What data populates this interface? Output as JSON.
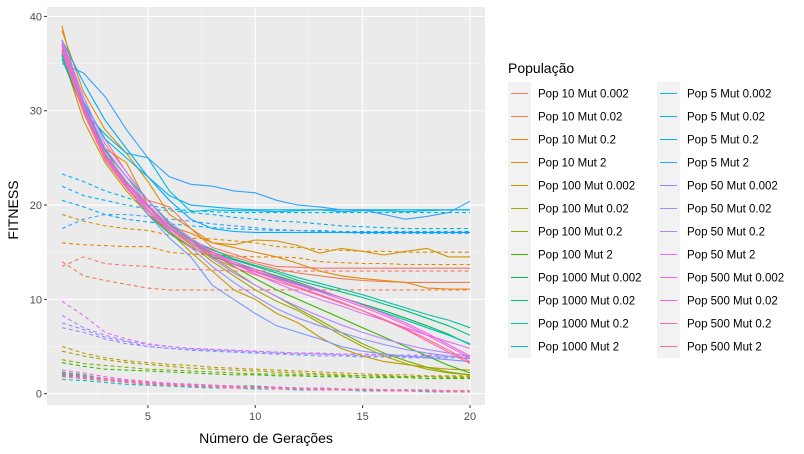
{
  "chart_data": {
    "type": "line",
    "xlabel": "Número de Gerações",
    "ylabel": "FITNESS",
    "xlim": [
      0.3,
      20.7
    ],
    "ylim": [
      -1.2,
      41
    ],
    "x_ticks": [
      5,
      10,
      15,
      20
    ],
    "y_ticks": [
      0,
      10,
      20,
      30,
      40
    ],
    "grid": true,
    "background": "#ebebeb",
    "legend": {
      "title": "População",
      "position": "right",
      "columns": 2
    },
    "x": [
      1,
      2,
      3,
      4,
      5,
      6,
      7,
      8,
      9,
      10,
      11,
      12,
      13,
      14,
      15,
      16,
      17,
      18,
      19,
      20
    ],
    "series": [
      {
        "name": "Pop 10 Mut 0.002",
        "color": "#F8766D",
        "best": [
          37.2,
          31.0,
          27.0,
          23.5,
          20.5,
          19.8,
          17.5,
          15.5,
          14.8,
          14.0,
          13.5,
          13.4,
          13.3,
          13.3,
          13.3,
          13.3,
          13.3,
          13.3,
          13.3,
          13.3
        ],
        "mean": [
          13.5,
          14.5,
          13.8,
          13.6,
          13.5,
          13.2,
          13.2,
          13.1,
          13.0,
          13.0,
          13.0,
          13.0,
          13.0,
          13.0,
          13.0,
          13.0,
          13.0,
          13.0,
          13.0,
          13.0
        ]
      },
      {
        "name": "Pop 10 Mut 0.02",
        "color": "#F17E4E",
        "best": [
          36.5,
          30.5,
          26.0,
          22.0,
          19.0,
          17.5,
          16.3,
          15.2,
          14.5,
          13.8,
          13.2,
          12.8,
          12.5,
          12.2,
          12.0,
          11.9,
          11.8,
          11.8,
          11.8,
          11.8
        ],
        "mean": [
          14.0,
          12.5,
          12.0,
          11.6,
          11.2,
          11.0,
          11.0,
          11.0,
          11.0,
          11.0,
          11.0,
          11.0,
          11.0,
          11.0,
          11.0,
          11.0,
          11.0,
          11.0,
          11.0,
          11.0
        ]
      },
      {
        "name": "Pop 10 Mut 0.2",
        "color": "#E58800",
        "best": [
          39.0,
          30.0,
          26.0,
          24.5,
          20.0,
          17.8,
          17.0,
          16.0,
          15.5,
          15.0,
          14.5,
          13.8,
          13.0,
          12.5,
          12.2,
          12.0,
          11.8,
          11.2,
          11.1,
          11.1
        ],
        "mean": [
          16.0,
          15.8,
          15.7,
          15.6,
          15.6,
          15.0,
          14.8,
          14.7,
          14.6,
          14.5,
          14.5,
          14.4,
          14.0,
          13.9,
          13.8,
          13.8,
          13.7,
          13.7,
          13.7,
          13.7
        ]
      },
      {
        "name": "Pop 10 Mut 2",
        "color": "#D89000",
        "best": [
          38.5,
          32.0,
          28.0,
          25.5,
          22.5,
          19.0,
          17.5,
          16.0,
          15.8,
          16.3,
          16.2,
          15.7,
          14.9,
          15.4,
          15.1,
          14.7,
          15.1,
          15.4,
          14.5,
          14.5
        ],
        "mean": [
          19.0,
          18.3,
          17.8,
          17.5,
          17.3,
          16.8,
          16.5,
          16.4,
          16.2,
          16.0,
          15.6,
          15.5,
          15.3,
          15.2,
          15.1,
          15.1,
          15.0,
          15.0,
          15.0,
          15.0
        ]
      },
      {
        "name": "Pop 100 Mut 0.002",
        "color": "#C09B00",
        "best": [
          36.0,
          29.0,
          24.5,
          21.5,
          19.0,
          17.2,
          15.0,
          13.0,
          11.0,
          10.0,
          8.5,
          7.5,
          6.0,
          4.8,
          4.0,
          3.4,
          3.1,
          2.8,
          2.6,
          2.5
        ],
        "mean": [
          5.0,
          4.3,
          3.8,
          3.5,
          3.3,
          3.1,
          3.0,
          2.8,
          2.7,
          2.6,
          2.5,
          2.4,
          2.3,
          2.2,
          2.1,
          2.0,
          2.0,
          1.9,
          1.9,
          1.9
        ]
      },
      {
        "name": "Pop 100 Mut 0.02",
        "color": "#A3A500",
        "best": [
          36.5,
          30.0,
          25.0,
          22.0,
          19.5,
          17.5,
          15.8,
          14.0,
          12.5,
          11.0,
          9.8,
          8.8,
          7.5,
          6.2,
          5.0,
          4.0,
          3.2,
          2.6,
          2.2,
          2.0
        ],
        "mean": [
          4.5,
          4.0,
          3.6,
          3.3,
          3.1,
          2.9,
          2.7,
          2.6,
          2.5,
          2.4,
          2.3,
          2.2,
          2.1,
          2.0,
          1.9,
          1.9,
          1.8,
          1.8,
          1.8,
          1.8
        ]
      },
      {
        "name": "Pop 100 Mut 0.2",
        "color": "#7CAE00",
        "best": [
          37.0,
          30.5,
          25.5,
          22.5,
          20.0,
          17.8,
          16.0,
          14.5,
          13.0,
          11.5,
          10.3,
          9.0,
          7.8,
          6.5,
          5.3,
          4.3,
          3.5,
          2.8,
          2.3,
          2.0
        ],
        "mean": [
          3.6,
          3.2,
          3.0,
          2.8,
          2.6,
          2.5,
          2.4,
          2.3,
          2.2,
          2.1,
          2.1,
          2.0,
          2.0,
          1.9,
          1.9,
          1.8,
          1.8,
          1.8,
          1.7,
          1.7
        ]
      },
      {
        "name": "Pop 100 Mut 2",
        "color": "#39B600",
        "best": [
          37.5,
          31.0,
          26.0,
          23.0,
          20.5,
          18.0,
          16.3,
          14.8,
          13.5,
          12.2,
          11.0,
          10.0,
          9.0,
          8.0,
          7.0,
          6.0,
          5.0,
          4.0,
          3.0,
          2.2
        ],
        "mean": [
          3.3,
          2.9,
          2.6,
          2.5,
          2.4,
          2.3,
          2.2,
          2.1,
          2.0,
          2.0,
          1.9,
          1.9,
          1.8,
          1.8,
          1.7,
          1.7,
          1.7,
          1.6,
          1.6,
          1.6
        ]
      },
      {
        "name": "Pop 1000 Mut 0.002",
        "color": "#00BB4E",
        "best": [
          35.5,
          30.0,
          25.0,
          22.0,
          19.0,
          17.0,
          15.5,
          14.5,
          13.8,
          13.2,
          12.5,
          11.8,
          11.0,
          10.2,
          9.5,
          8.8,
          8.0,
          7.2,
          6.3,
          5.2
        ],
        "mean": [
          2.3,
          2.0,
          1.6,
          1.4,
          1.2,
          1.1,
          1.0,
          0.9,
          0.8,
          0.8,
          0.7,
          0.6,
          0.6,
          0.5,
          0.5,
          0.4,
          0.4,
          0.4,
          0.3,
          0.3
        ]
      },
      {
        "name": "Pop 1000 Mut 0.02",
        "color": "#00BF7D",
        "best": [
          36.0,
          30.5,
          25.5,
          22.5,
          20.0,
          17.5,
          16.0,
          15.0,
          14.2,
          13.5,
          12.8,
          12.0,
          11.4,
          10.8,
          10.2,
          9.5,
          8.8,
          8.0,
          7.2,
          6.2
        ],
        "mean": [
          2.1,
          1.8,
          1.5,
          1.3,
          1.1,
          1.0,
          0.9,
          0.8,
          0.7,
          0.7,
          0.6,
          0.6,
          0.5,
          0.5,
          0.4,
          0.4,
          0.4,
          0.3,
          0.3,
          0.3
        ]
      },
      {
        "name": "Pop 1000 Mut 0.2",
        "color": "#00C1A3",
        "best": [
          36.2,
          30.8,
          25.8,
          23.0,
          20.5,
          18.0,
          16.3,
          15.3,
          14.3,
          13.6,
          13.0,
          12.3,
          11.7,
          11.1,
          10.5,
          9.8,
          9.1,
          8.4,
          7.8,
          7.0
        ],
        "mean": [
          1.9,
          1.6,
          1.4,
          1.2,
          1.0,
          0.9,
          0.8,
          0.7,
          0.7,
          0.6,
          0.6,
          0.5,
          0.5,
          0.4,
          0.4,
          0.3,
          0.3,
          0.3,
          0.3,
          0.2
        ]
      },
      {
        "name": "Pop 1000 Mut 2",
        "color": "#00BFC4",
        "best": [
          35.8,
          30.2,
          25.3,
          22.3,
          19.8,
          17.5,
          16.0,
          14.8,
          13.8,
          13.0,
          12.3,
          11.6,
          10.9,
          10.2,
          9.4,
          8.6,
          7.8,
          7.0,
          6.2,
          5.3
        ],
        "mean": [
          1.5,
          1.4,
          1.2,
          1.0,
          0.9,
          0.8,
          0.7,
          0.6,
          0.6,
          0.5,
          0.5,
          0.4,
          0.4,
          0.4,
          0.3,
          0.3,
          0.3,
          0.2,
          0.2,
          0.2
        ]
      },
      {
        "name": "Pop 5 Mut 0.002",
        "color": "#00BAE0",
        "best": [
          36.0,
          30.0,
          27.5,
          25.5,
          25.0,
          21.5,
          19.3,
          19.5,
          19.4,
          19.4,
          19.3,
          19.4,
          19.5,
          19.3,
          19.4,
          19.4,
          19.3,
          19.4,
          19.5,
          19.5
        ],
        "mean": [
          23.3,
          22.5,
          21.5,
          20.8,
          20.0,
          19.6,
          19.4,
          19.3,
          19.2,
          19.2,
          19.2,
          19.2,
          19.2,
          19.2,
          19.2,
          19.2,
          19.2,
          19.2,
          19.2,
          19.2
        ]
      },
      {
        "name": "Pop 5 Mut 0.02",
        "color": "#00B4EF",
        "best": [
          37.0,
          31.0,
          27.0,
          25.0,
          23.0,
          21.0,
          20.0,
          19.8,
          19.6,
          19.5,
          19.5,
          19.5,
          19.5,
          19.5,
          19.5,
          19.5,
          19.5,
          19.5,
          19.5,
          19.5
        ],
        "mean": [
          22.0,
          21.0,
          20.5,
          20.0,
          19.6,
          19.4,
          19.2,
          19.0,
          18.7,
          18.5,
          18.3,
          18.2,
          18.0,
          17.8,
          17.7,
          17.6,
          17.5,
          17.5,
          17.5,
          17.5
        ]
      },
      {
        "name": "Pop 5 Mut 0.2",
        "color": "#00ABFD",
        "best": [
          37.5,
          33.0,
          29.0,
          26.0,
          23.0,
          20.5,
          18.5,
          17.5,
          17.2,
          17.1,
          17.1,
          17.1,
          17.1,
          17.1,
          17.1,
          17.1,
          17.1,
          17.1,
          17.1,
          17.1
        ],
        "mean": [
          20.5,
          19.8,
          19.0,
          18.5,
          18.2,
          18.0,
          17.8,
          17.6,
          17.5,
          17.4,
          17.3,
          17.3,
          17.3,
          17.2,
          17.2,
          17.2,
          17.2,
          17.2,
          17.2,
          17.2
        ]
      },
      {
        "name": "Pop 5 Mut 2",
        "color": "#35A2FF",
        "best": [
          35.0,
          34.0,
          31.5,
          28.0,
          25.0,
          23.0,
          22.2,
          22.0,
          21.5,
          21.3,
          20.5,
          20.0,
          19.8,
          19.5,
          19.5,
          19.0,
          18.5,
          18.8,
          19.2,
          20.4
        ],
        "mean": [
          17.5,
          18.5,
          19.0,
          19.0,
          18.8,
          18.5,
          18.3,
          18.0,
          17.8,
          17.6,
          17.4,
          17.3,
          17.2,
          17.1,
          17.0,
          17.0,
          17.0,
          17.0,
          17.0,
          17.0
        ]
      },
      {
        "name": "Pop 50 Mut 0.002",
        "color": "#7997FF",
        "best": [
          36.5,
          30.0,
          25.0,
          22.0,
          19.0,
          16.5,
          14.5,
          11.5,
          10.0,
          8.5,
          7.2,
          6.5,
          5.8,
          5.0,
          4.5,
          4.2,
          4.0,
          3.8,
          3.6,
          3.4
        ],
        "mean": [
          7.5,
          6.8,
          6.0,
          5.5,
          5.0,
          4.8,
          4.6,
          4.5,
          4.4,
          4.3,
          4.2,
          4.1,
          4.0,
          4.0,
          3.9,
          3.9,
          3.8,
          3.8,
          3.8,
          3.8
        ]
      },
      {
        "name": "Pop 50 Mut 0.02",
        "color": "#9590FF",
        "best": [
          37.0,
          30.5,
          25.5,
          22.5,
          19.5,
          17.3,
          15.5,
          13.5,
          11.8,
          10.3,
          9.0,
          8.0,
          7.2,
          6.5,
          5.8,
          5.2,
          4.7,
          4.3,
          4.0,
          3.7
        ],
        "mean": [
          7.0,
          6.5,
          5.8,
          5.3,
          5.0,
          4.8,
          4.7,
          4.6,
          4.5,
          4.4,
          4.3,
          4.2,
          4.2,
          4.1,
          4.0,
          4.0,
          3.9,
          3.9,
          3.9,
          3.9
        ]
      },
      {
        "name": "Pop 50 Mut 0.2",
        "color": "#B983FF",
        "best": [
          37.2,
          31.0,
          26.0,
          23.0,
          20.0,
          17.8,
          16.0,
          14.3,
          12.8,
          11.5,
          10.3,
          9.2,
          8.2,
          7.3,
          6.5,
          5.8,
          5.2,
          4.7,
          4.3,
          4.0
        ],
        "mean": [
          8.3,
          7.0,
          6.2,
          5.6,
          5.2,
          5.0,
          4.8,
          4.7,
          4.6,
          4.5,
          4.4,
          4.3,
          4.2,
          4.2,
          4.1,
          4.1,
          4.0,
          4.0,
          4.0,
          4.0
        ]
      },
      {
        "name": "Pop 50 Mut 2",
        "color": "#DC71FA",
        "best": [
          37.5,
          31.5,
          26.5,
          23.5,
          20.5,
          18.2,
          16.5,
          15.0,
          13.8,
          12.7,
          11.7,
          10.8,
          10.0,
          9.3,
          8.5,
          7.8,
          7.0,
          6.2,
          5.5,
          4.8
        ],
        "mean": [
          9.8,
          8.3,
          6.5,
          5.8,
          5.3,
          5.0,
          4.8,
          4.7,
          4.6,
          4.5,
          4.4,
          4.3,
          4.3,
          4.2,
          4.2,
          4.1,
          4.1,
          4.1,
          4.0,
          4.0
        ]
      },
      {
        "name": "Pop 500 Mut 0.002",
        "color": "#F066EA",
        "best": [
          36.5,
          30.0,
          25.0,
          22.0,
          19.5,
          17.5,
          16.0,
          14.8,
          13.8,
          13.0,
          12.2,
          11.5,
          10.8,
          10.0,
          9.2,
          8.3,
          7.3,
          6.2,
          5.0,
          3.8
        ],
        "mean": [
          2.5,
          2.2,
          1.8,
          1.5,
          1.3,
          1.1,
          1.0,
          0.9,
          0.8,
          0.7,
          0.7,
          0.6,
          0.6,
          0.5,
          0.5,
          0.4,
          0.4,
          0.4,
          0.3,
          0.3
        ]
      },
      {
        "name": "Pop 500 Mut 0.02",
        "color": "#FC61D5",
        "best": [
          37.0,
          30.5,
          25.5,
          22.5,
          20.0,
          17.8,
          16.2,
          15.0,
          14.0,
          13.2,
          12.4,
          11.7,
          11.0,
          10.2,
          9.4,
          8.5,
          7.5,
          6.4,
          5.2,
          4.0
        ],
        "mean": [
          2.2,
          1.9,
          1.6,
          1.4,
          1.2,
          1.0,
          0.9,
          0.8,
          0.7,
          0.7,
          0.6,
          0.6,
          0.5,
          0.5,
          0.4,
          0.4,
          0.4,
          0.3,
          0.3,
          0.3
        ]
      },
      {
        "name": "Pop 500 Mut 0.2",
        "color": "#FF64B0",
        "best": [
          36.8,
          30.2,
          25.2,
          22.2,
          19.8,
          17.6,
          16.0,
          14.7,
          13.7,
          12.9,
          12.1,
          11.3,
          10.5,
          9.7,
          8.8,
          7.8,
          6.8,
          5.6,
          4.4,
          3.2
        ],
        "mean": [
          2.0,
          1.7,
          1.5,
          1.3,
          1.1,
          1.0,
          0.9,
          0.8,
          0.7,
          0.6,
          0.6,
          0.5,
          0.5,
          0.4,
          0.4,
          0.4,
          0.3,
          0.3,
          0.3,
          0.3
        ]
      },
      {
        "name": "Pop 500 Mut 2",
        "color": "#FF6C91",
        "best": [
          36.3,
          29.8,
          24.8,
          21.8,
          19.3,
          17.2,
          15.6,
          14.4,
          13.4,
          12.6,
          11.9,
          11.2,
          10.4,
          9.6,
          8.8,
          7.9,
          6.9,
          5.8,
          4.6,
          3.4
        ],
        "mean": [
          1.8,
          1.6,
          1.4,
          1.2,
          1.0,
          0.9,
          0.8,
          0.7,
          0.6,
          0.6,
          0.5,
          0.5,
          0.4,
          0.4,
          0.4,
          0.3,
          0.3,
          0.3,
          0.2,
          0.2
        ]
      }
    ]
  }
}
